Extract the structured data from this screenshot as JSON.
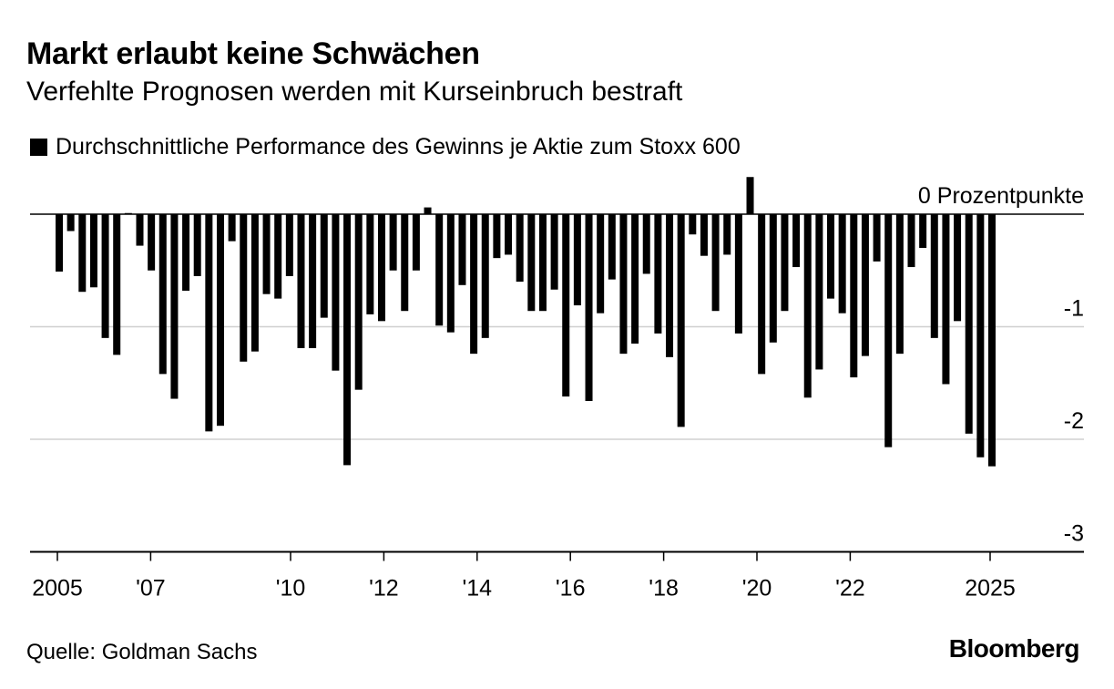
{
  "title": "Markt erlaubt keine Schwächen",
  "subtitle": "Verfehlte Prognosen werden mit Kurseinbruch bestraft",
  "legend": {
    "label": "Durchschnittliche Performance des Gewinns je Aktie zum Stoxx 600",
    "color": "#000000"
  },
  "source": "Quelle: Goldman Sachs",
  "logo": "Bloomberg",
  "chart_data": {
    "type": "bar",
    "title": "Markt erlaubt keine Schwächen",
    "subtitle": "Verfehlte Prognosen werden mit Kurseinbruch bestraft",
    "ylabel": "",
    "ylim": [
      -3,
      0.35
    ],
    "y_ticks": [
      {
        "value": 0,
        "label": "0 Prozentpunkte"
      },
      {
        "value": -1,
        "label": "-1"
      },
      {
        "value": -2,
        "label": "-2"
      },
      {
        "value": -3,
        "label": "-3"
      }
    ],
    "x_ticks": [
      {
        "value": 2005,
        "label": "2005"
      },
      {
        "value": 2007,
        "label": "'07"
      },
      {
        "value": 2010,
        "label": "'10"
      },
      {
        "value": 2012,
        "label": "'12"
      },
      {
        "value": 2014,
        "label": "'14"
      },
      {
        "value": 2016,
        "label": "'16"
      },
      {
        "value": 2018,
        "label": "'18"
      },
      {
        "value": 2020,
        "label": "'20"
      },
      {
        "value": 2022,
        "label": "'22"
      },
      {
        "value": 2025,
        "label": "2025"
      }
    ],
    "grid": true,
    "legend_position": "top-left",
    "bar_color": "#000000",
    "series": [
      {
        "values": [
          -0.51,
          -0.15,
          -0.69,
          -0.65,
          -1.1,
          -1.25,
          0.01,
          -0.28,
          -0.5,
          -1.42,
          -1.64,
          -0.68,
          -0.55,
          -1.93,
          -1.88,
          -0.24,
          -1.31,
          -1.22,
          -0.71,
          -0.75,
          -0.55,
          -1.19,
          -1.19,
          -0.92,
          -1.39,
          -2.23,
          -1.56,
          -0.89,
          -0.95,
          -0.5,
          -0.86,
          -0.5,
          0.06,
          -0.99,
          -1.05,
          -0.63,
          -1.24,
          -1.1,
          -0.39,
          -0.36,
          -0.6,
          -0.86,
          -0.86,
          -0.67,
          -1.62,
          -0.81,
          -1.66,
          -0.88,
          -0.58,
          -1.24,
          -1.15,
          -0.53,
          -1.06,
          -1.27,
          -1.89,
          -0.18,
          -0.37,
          -0.86,
          -0.36,
          -1.06,
          0.33,
          -1.42,
          -1.14,
          -0.86,
          -0.47,
          -1.63,
          -1.38,
          -0.75,
          -0.88,
          -1.45,
          -1.26,
          -0.42,
          -2.07,
          -1.24,
          -0.47,
          -0.3,
          -1.1,
          -1.51,
          -0.95,
          -1.95,
          -2.16,
          -2.24
        ]
      }
    ]
  }
}
